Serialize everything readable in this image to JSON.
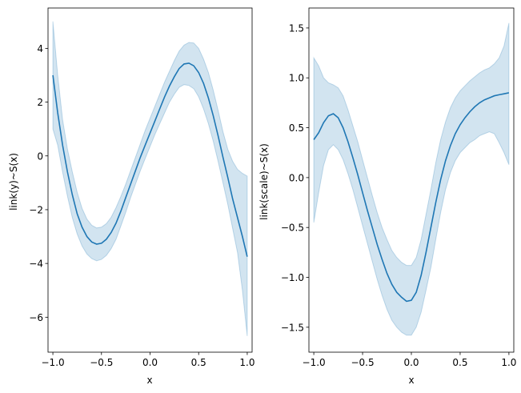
{
  "chart_data": [
    {
      "type": "line",
      "title": "",
      "xlabel": "x",
      "ylabel": "link(y)~S(x)",
      "xlim": [
        -1.05,
        1.05
      ],
      "ylim": [
        -7.3,
        5.5
      ],
      "xticks": [
        -1.0,
        -0.5,
        0.0,
        0.5,
        1.0
      ],
      "xtick_labels": [
        "−1.0",
        "−0.5",
        "0.0",
        "0.5",
        "1.0"
      ],
      "yticks": [
        4,
        2,
        0,
        -2,
        -4,
        -6
      ],
      "ytick_labels": [
        "4",
        "2",
        "0",
        "−2",
        "−4",
        "−6"
      ],
      "grid": false,
      "line_color": "#1f77b4",
      "band_color": "#1f77b4",
      "series": [
        {
          "x": [
            -1.0,
            -0.95,
            -0.9,
            -0.85,
            -0.8,
            -0.75,
            -0.7,
            -0.65,
            -0.6,
            -0.55,
            -0.5,
            -0.45,
            -0.4,
            -0.35,
            -0.3,
            -0.25,
            -0.2,
            -0.15,
            -0.1,
            -0.05,
            0.0,
            0.05,
            0.1,
            0.15,
            0.2,
            0.25,
            0.3,
            0.35,
            0.4,
            0.45,
            0.5,
            0.55,
            0.6,
            0.65,
            0.7,
            0.75,
            0.8,
            0.85,
            0.9,
            0.95,
            1.0
          ],
          "y": [
            3.0,
            1.6,
            0.4,
            -0.6,
            -1.45,
            -2.15,
            -2.65,
            -3.0,
            -3.2,
            -3.28,
            -3.25,
            -3.1,
            -2.85,
            -2.5,
            -2.05,
            -1.55,
            -1.05,
            -0.55,
            -0.05,
            0.4,
            0.85,
            1.3,
            1.75,
            2.2,
            2.6,
            2.95,
            3.25,
            3.42,
            3.45,
            3.35,
            3.1,
            2.7,
            2.15,
            1.5,
            0.75,
            -0.05,
            -0.8,
            -1.6,
            -2.3,
            -3.0,
            -3.75
          ],
          "lower": [
            1.0,
            0.4,
            -0.6,
            -1.5,
            -2.3,
            -2.9,
            -3.35,
            -3.65,
            -3.82,
            -3.9,
            -3.85,
            -3.7,
            -3.45,
            -3.1,
            -2.6,
            -2.1,
            -1.55,
            -1.05,
            -0.55,
            -0.1,
            0.35,
            0.8,
            1.2,
            1.6,
            2.0,
            2.3,
            2.55,
            2.65,
            2.62,
            2.5,
            2.2,
            1.75,
            1.2,
            0.55,
            -0.2,
            -1.0,
            -1.8,
            -2.7,
            -3.6,
            -5.0,
            -6.7
          ],
          "upper": [
            5.0,
            3.0,
            1.35,
            0.25,
            -0.6,
            -1.35,
            -1.95,
            -2.35,
            -2.58,
            -2.68,
            -2.65,
            -2.52,
            -2.28,
            -1.92,
            -1.5,
            -1.05,
            -0.55,
            -0.05,
            0.45,
            0.95,
            1.4,
            1.85,
            2.3,
            2.75,
            3.15,
            3.55,
            3.9,
            4.12,
            4.22,
            4.2,
            4.0,
            3.6,
            3.1,
            2.45,
            1.7,
            0.9,
            0.25,
            -0.2,
            -0.5,
            -0.65,
            -0.75
          ]
        }
      ]
    },
    {
      "type": "line",
      "title": "",
      "xlabel": "x",
      "ylabel": "link(scale)~S(x)",
      "xlim": [
        -1.05,
        1.05
      ],
      "ylim": [
        -1.75,
        1.7
      ],
      "xticks": [
        -1.0,
        -0.5,
        0.0,
        0.5,
        1.0
      ],
      "xtick_labels": [
        "−1.0",
        "−0.5",
        "0.0",
        "0.5",
        "1.0"
      ],
      "yticks": [
        1.5,
        1.0,
        0.5,
        0.0,
        -0.5,
        -1.0,
        -1.5
      ],
      "ytick_labels": [
        "1.5",
        "1.0",
        "0.5",
        "0.0",
        "−0.5",
        "−1.0",
        "−1.5"
      ],
      "grid": false,
      "line_color": "#1f77b4",
      "band_color": "#1f77b4",
      "series": [
        {
          "x": [
            -1.0,
            -0.95,
            -0.9,
            -0.85,
            -0.8,
            -0.75,
            -0.7,
            -0.65,
            -0.6,
            -0.55,
            -0.5,
            -0.45,
            -0.4,
            -0.35,
            -0.3,
            -0.25,
            -0.2,
            -0.15,
            -0.1,
            -0.05,
            0.0,
            0.05,
            0.1,
            0.15,
            0.2,
            0.25,
            0.3,
            0.35,
            0.4,
            0.45,
            0.5,
            0.55,
            0.6,
            0.65,
            0.7,
            0.75,
            0.8,
            0.85,
            0.9,
            0.95,
            1.0
          ],
          "y": [
            0.38,
            0.45,
            0.55,
            0.62,
            0.64,
            0.6,
            0.5,
            0.36,
            0.2,
            0.03,
            -0.15,
            -0.33,
            -0.5,
            -0.67,
            -0.82,
            -0.96,
            -1.07,
            -1.15,
            -1.2,
            -1.24,
            -1.23,
            -1.15,
            -0.98,
            -0.75,
            -0.5,
            -0.25,
            -0.02,
            0.17,
            0.32,
            0.44,
            0.53,
            0.6,
            0.66,
            0.71,
            0.75,
            0.78,
            0.8,
            0.82,
            0.83,
            0.84,
            0.85
          ],
          "lower": [
            -0.45,
            -0.15,
            0.12,
            0.28,
            0.33,
            0.28,
            0.18,
            0.04,
            -0.12,
            -0.3,
            -0.48,
            -0.66,
            -0.84,
            -1.02,
            -1.18,
            -1.32,
            -1.43,
            -1.5,
            -1.55,
            -1.58,
            -1.58,
            -1.5,
            -1.35,
            -1.13,
            -0.9,
            -0.62,
            -0.35,
            -0.12,
            0.05,
            0.17,
            0.25,
            0.3,
            0.35,
            0.38,
            0.42,
            0.44,
            0.46,
            0.44,
            0.35,
            0.25,
            0.13
          ],
          "upper": [
            1.2,
            1.12,
            1.0,
            0.95,
            0.93,
            0.9,
            0.82,
            0.68,
            0.52,
            0.36,
            0.18,
            0.0,
            -0.18,
            -0.35,
            -0.5,
            -0.62,
            -0.73,
            -0.8,
            -0.85,
            -0.88,
            -0.88,
            -0.8,
            -0.62,
            -0.37,
            -0.12,
            0.15,
            0.38,
            0.56,
            0.7,
            0.8,
            0.87,
            0.92,
            0.97,
            1.01,
            1.05,
            1.08,
            1.1,
            1.14,
            1.2,
            1.32,
            1.55
          ]
        }
      ]
    }
  ]
}
